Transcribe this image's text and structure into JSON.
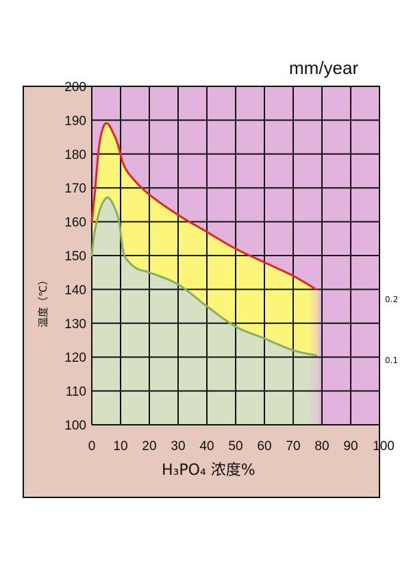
{
  "chart_data": {
    "type": "area",
    "unit_label": "mm/year",
    "ylabel": "温度（℃）",
    "xlabel": "H₃PO₄ 浓度%",
    "xlim": [
      0,
      100
    ],
    "ylim": [
      100,
      200
    ],
    "x_ticks": [
      "0",
      "10",
      "20",
      "30",
      "40",
      "50",
      "60",
      "70",
      "80",
      "90",
      "100"
    ],
    "y_ticks": [
      "100",
      "110",
      "120",
      "130",
      "140",
      "150",
      "160",
      "170",
      "180",
      "190",
      "200"
    ],
    "grid": true,
    "series": [
      {
        "name": "0.2",
        "points": [
          [
            0,
            160
          ],
          [
            1,
            168
          ],
          [
            2.5,
            182
          ],
          [
            4,
            188
          ],
          [
            5.5,
            189
          ],
          [
            7,
            187
          ],
          [
            9,
            183
          ],
          [
            11,
            177
          ],
          [
            14,
            173
          ],
          [
            20,
            168
          ],
          [
            30,
            162
          ],
          [
            40,
            157
          ],
          [
            50,
            152
          ],
          [
            60,
            148
          ],
          [
            70,
            144
          ],
          [
            78,
            140
          ]
        ]
      },
      {
        "name": "0.1",
        "points": [
          [
            0,
            150
          ],
          [
            1,
            157
          ],
          [
            3,
            164
          ],
          [
            5,
            167
          ],
          [
            6.5,
            166.5
          ],
          [
            8,
            164
          ],
          [
            9.5,
            160
          ],
          [
            11,
            151
          ],
          [
            13,
            148
          ],
          [
            16,
            146
          ],
          [
            20,
            145
          ],
          [
            30,
            141.5
          ],
          [
            40,
            135
          ],
          [
            50,
            129
          ],
          [
            60,
            125.5
          ],
          [
            70,
            122
          ],
          [
            78,
            120.5
          ]
        ]
      }
    ],
    "colors": {
      "outer_frame": "#E6C9BC",
      "above_upper": "#E2B3DC",
      "between": "#FBF67A",
      "below_lower": "#D6E0C3",
      "upper_line": "#DD2A24",
      "lower_line": "#8AAE62",
      "grid": "#111111"
    }
  }
}
